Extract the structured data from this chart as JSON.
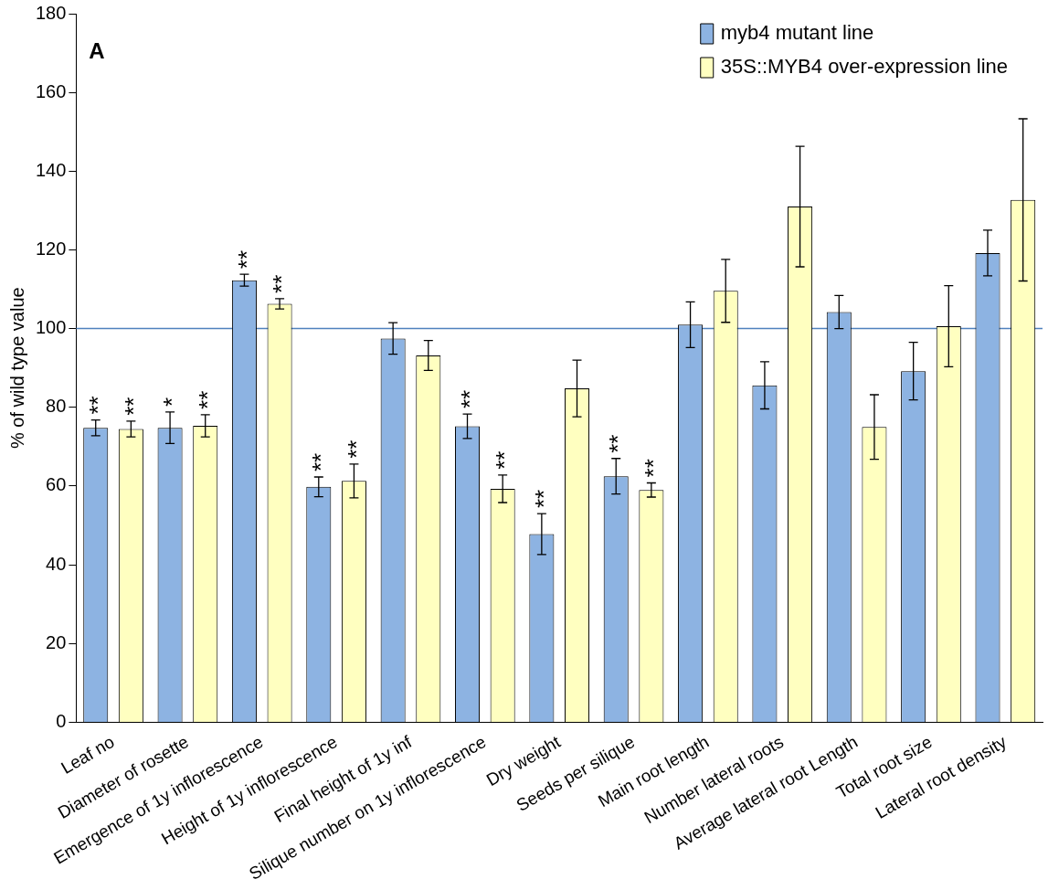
{
  "chart_data": {
    "type": "bar",
    "ylabel": "% of wild type value",
    "categories": [
      "Leaf no",
      "Diameter of rosette",
      "Emergence of 1y inflorescence",
      "Height of 1y inflorescence",
      "Final height of 1y inf",
      "Silique number on 1y inflorescence",
      "Dry weight",
      "Seeds per silique",
      "Main root length",
      "Number lateral roots",
      "Average lateral root Length",
      "Total root size",
      "Lateral root density"
    ],
    "series": [
      {
        "name": "myb4 mutant line",
        "color": "#8db3e2",
        "values": [
          74.8,
          74.8,
          112.3,
          59.8,
          97.5,
          75.2,
          47.8,
          62.5,
          101,
          85.6,
          104.2,
          89.2,
          119.2
        ],
        "errors": [
          2,
          4,
          1.5,
          2.5,
          4,
          3.1,
          5.2,
          4.5,
          5.8,
          6,
          4.2,
          7.3,
          5.8
        ]
      },
      {
        "name": "35S::MYB4 over-expression line",
        "color": "#ffffc0",
        "values": [
          74.5,
          75.3,
          106.3,
          61.3,
          93.2,
          59.3,
          84.8,
          59,
          109.6,
          131,
          75,
          100.6,
          132.7
        ],
        "errors": [
          2,
          2.8,
          1.3,
          4.3,
          3.8,
          3.5,
          7.2,
          1.8,
          8,
          15.3,
          8.2,
          10.3,
          20.6
        ]
      }
    ],
    "ylim": [
      0,
      180
    ],
    "yticks": [
      0,
      20,
      40,
      60,
      80,
      100,
      120,
      140,
      160,
      180
    ],
    "grid": false,
    "legend": "top right",
    "ref_lines": [
      {
        "axis": "y",
        "value": 100,
        "color": "#4f81bd"
      }
    ],
    "annotations": [
      "A",
      "**",
      "**",
      "*",
      "**",
      "**",
      "**",
      "**",
      "**",
      "**",
      "**",
      "**",
      "**",
      "**"
    ]
  }
}
